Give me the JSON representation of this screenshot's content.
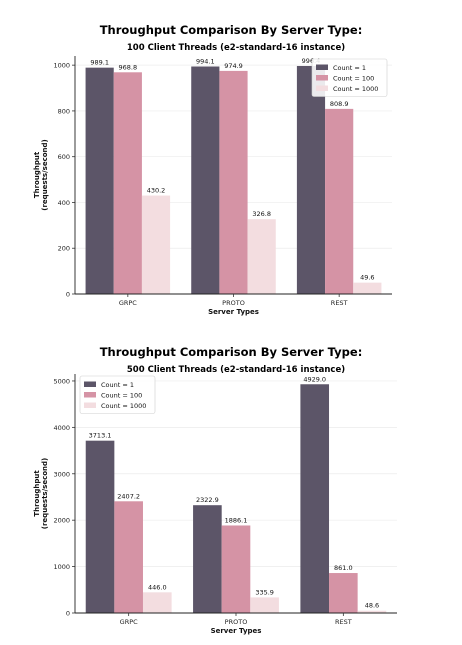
{
  "colors": {
    "count_1": "#5c5568",
    "count_100": "#d593a5",
    "count_1000": "#f3dde0"
  },
  "chart_data": [
    {
      "type": "bar",
      "title": "Throughput Comparison By Server Type:",
      "subtitle": "100 Client Threads (e2-standard-16 instance)",
      "xlabel": "Server Types",
      "ylabel": [
        "Throughput",
        "(requests/second)"
      ],
      "categories": [
        "GRPC",
        "PROTO",
        "REST"
      ],
      "ylim": [
        0,
        1040
      ],
      "yticks": [
        0,
        200,
        400,
        600,
        800,
        1000
      ],
      "legend_position": "top-right",
      "series": [
        {
          "name": "Count = 1",
          "values": [
            989.1,
            994.1,
            996.4
          ],
          "labels": [
            "989.1",
            "994.1",
            "996.4"
          ]
        },
        {
          "name": "Count = 100",
          "values": [
            968.8,
            974.9,
            808.9
          ],
          "labels": [
            "968.8",
            "974.9",
            "808.9"
          ]
        },
        {
          "name": "Count = 1000",
          "values": [
            430.2,
            326.8,
            49.6
          ],
          "labels": [
            "430.2",
            "326.8",
            "49.6"
          ]
        }
      ]
    },
    {
      "type": "bar",
      "title": "Throughput Comparison By Server Type:",
      "subtitle": "500 Client Threads (e2-standard-16 instance)",
      "xlabel": "Server Types",
      "ylabel": [
        "Throughput",
        "(requests/second)"
      ],
      "categories": [
        "GRPC",
        "PROTO",
        "REST"
      ],
      "ylim": [
        0,
        5150
      ],
      "yticks": [
        0,
        1000,
        2000,
        3000,
        4000,
        5000
      ],
      "legend_position": "top-left",
      "series": [
        {
          "name": "Count = 1",
          "values": [
            3713.1,
            2322.9,
            4929.0
          ],
          "labels": [
            "3713.1",
            "2322.9",
            "4929.0"
          ]
        },
        {
          "name": "Count = 100",
          "values": [
            2407.2,
            1886.1,
            861.0
          ],
          "labels": [
            "2407.2",
            "1886.1",
            "861.0"
          ]
        },
        {
          "name": "Count = 1000",
          "values": [
            446.0,
            335.9,
            48.6
          ],
          "labels": [
            "446.0",
            "335.9",
            "48.6"
          ]
        }
      ]
    }
  ]
}
